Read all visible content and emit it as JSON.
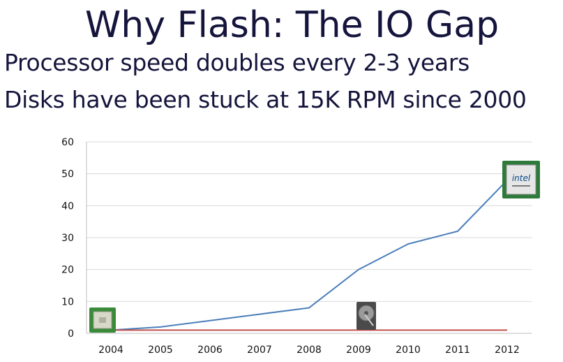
{
  "slide": {
    "title": "Why Flash: The IO Gap",
    "bullets": [
      "Processor speed doubles every 2-3 years",
      "Disks have been stuck at 15K RPM since 2000"
    ]
  },
  "chart_data": {
    "type": "line",
    "categories": [
      "2004",
      "2005",
      "2006",
      "2007",
      "2008",
      "2009",
      "2010",
      "2011",
      "2012"
    ],
    "ylim": [
      0,
      60
    ],
    "yticks": [
      0,
      10,
      20,
      30,
      40,
      50,
      60
    ],
    "grid": true,
    "series": [
      {
        "color": "#4a7ebb",
        "values": [
          1,
          2,
          4,
          6,
          8,
          20,
          28,
          32,
          48
        ]
      },
      {
        "color": "#c0504d",
        "values": [
          1,
          1,
          1,
          1,
          1,
          1,
          1,
          1,
          1
        ]
      }
    ],
    "images": [
      {
        "icon": "old-processor-chip-icon",
        "category": "2004"
      },
      {
        "icon": "hard-disk-drive-icon",
        "category": "2009"
      },
      {
        "icon": "intel-processor-chip-icon",
        "category": "2012",
        "text": "intel"
      }
    ]
  }
}
